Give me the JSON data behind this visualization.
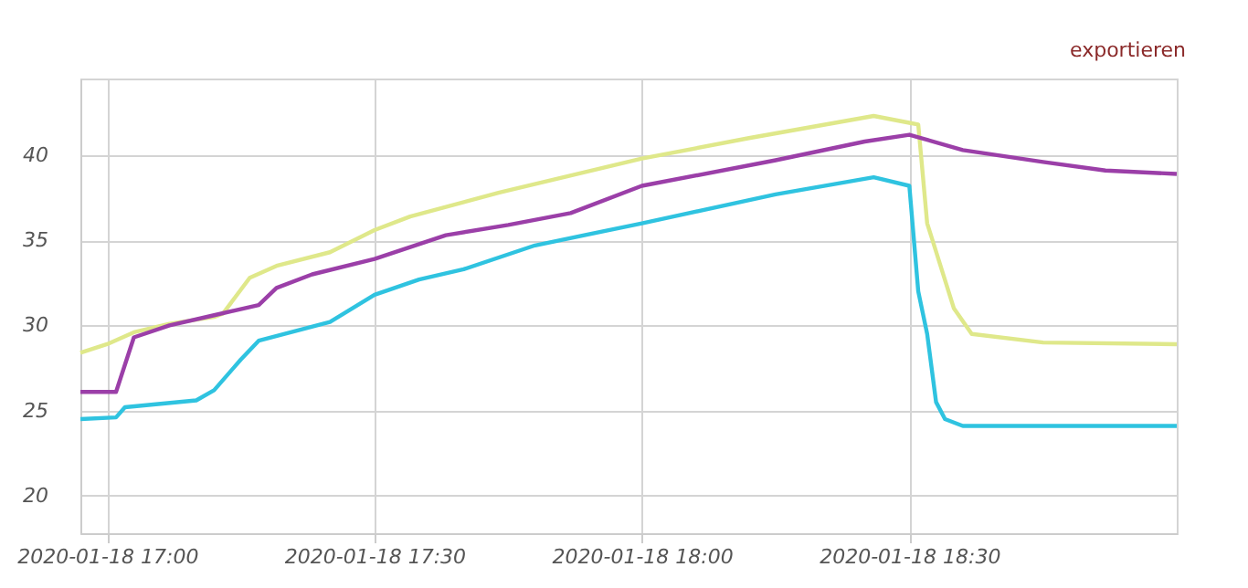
{
  "chart_data": {
    "type": "line",
    "annotations": [
      "exportieren"
    ],
    "grid": true,
    "legend": false,
    "marker": "none",
    "line_style": "solid",
    "xlim": [
      "2020-01-18T16:57",
      "2020-01-18T19:00"
    ],
    "xticks": [
      {
        "value": "2020-01-18T17:00",
        "label": "2020-01-18 17:00"
      },
      {
        "value": "2020-01-18T17:30",
        "label": "2020-01-18 17:30"
      },
      {
        "value": "2020-01-18T18:00",
        "label": "2020-01-18 18:00"
      },
      {
        "value": "2020-01-18T18:30",
        "label": "2020-01-18 18:30"
      }
    ],
    "ylim": [
      17.8,
      44.5
    ],
    "yticks": [
      20,
      25,
      30,
      35,
      40
    ],
    "series": [
      {
        "color": "#dfe88a",
        "x": [
          "2020-01-18T16:57",
          "2020-01-18T17:00",
          "2020-01-18T17:03",
          "2020-01-18T17:07",
          "2020-01-18T17:12",
          "2020-01-18T17:13",
          "2020-01-18T17:16",
          "2020-01-18T17:19",
          "2020-01-18T17:25",
          "2020-01-18T17:30",
          "2020-01-18T17:34",
          "2020-01-18T17:44",
          "2020-01-18T18:00",
          "2020-01-18T18:12",
          "2020-01-18T18:26",
          "2020-01-18T18:30",
          "2020-01-18T18:31",
          "2020-01-18T18:32",
          "2020-01-18T18:35",
          "2020-01-18T18:37",
          "2020-01-18T18:45",
          "2020-01-18T19:00"
        ],
        "values": [
          28.4,
          28.9,
          29.6,
          30.1,
          30.5,
          30.7,
          32.8,
          33.5,
          34.3,
          35.6,
          36.4,
          37.8,
          39.8,
          41.0,
          42.3,
          41.9,
          41.8,
          36.0,
          31.0,
          29.5,
          29.0,
          28.9
        ]
      },
      {
        "color": "#9b3fa8",
        "x": [
          "2020-01-18T16:57",
          "2020-01-18T17:01",
          "2020-01-18T17:03",
          "2020-01-18T17:07",
          "2020-01-18T17:12",
          "2020-01-18T17:17",
          "2020-01-18T17:19",
          "2020-01-18T17:23",
          "2020-01-18T17:30",
          "2020-01-18T17:38",
          "2020-01-18T17:45",
          "2020-01-18T17:52",
          "2020-01-18T18:00",
          "2020-01-18T18:15",
          "2020-01-18T18:25",
          "2020-01-18T18:30",
          "2020-01-18T18:36",
          "2020-01-18T18:45",
          "2020-01-18T18:52",
          "2020-01-18T19:00"
        ],
        "values": [
          26.1,
          26.1,
          29.3,
          30.0,
          30.6,
          31.2,
          32.2,
          33.0,
          33.9,
          35.3,
          35.9,
          36.6,
          38.2,
          39.7,
          40.8,
          41.2,
          40.3,
          39.6,
          39.1,
          38.9
        ]
      },
      {
        "color": "#2fc3e0",
        "x": [
          "2020-01-18T16:57",
          "2020-01-18T17:01",
          "2020-01-18T17:02",
          "2020-01-18T17:10",
          "2020-01-18T17:12",
          "2020-01-18T17:15",
          "2020-01-18T17:17",
          "2020-01-18T17:25",
          "2020-01-18T17:30",
          "2020-01-18T17:35",
          "2020-01-18T17:40",
          "2020-01-18T17:48",
          "2020-01-18T18:00",
          "2020-01-18T18:15",
          "2020-01-18T18:26",
          "2020-01-18T18:30",
          "2020-01-18T18:31",
          "2020-01-18T18:32",
          "2020-01-18T18:33",
          "2020-01-18T18:34",
          "2020-01-18T18:36",
          "2020-01-18T19:00"
        ],
        "values": [
          24.5,
          24.6,
          25.2,
          25.6,
          26.2,
          28.0,
          29.1,
          30.2,
          31.8,
          32.7,
          33.3,
          34.7,
          36.0,
          37.7,
          38.7,
          38.2,
          32.0,
          29.5,
          25.5,
          24.5,
          24.1,
          24.1
        ]
      }
    ]
  }
}
